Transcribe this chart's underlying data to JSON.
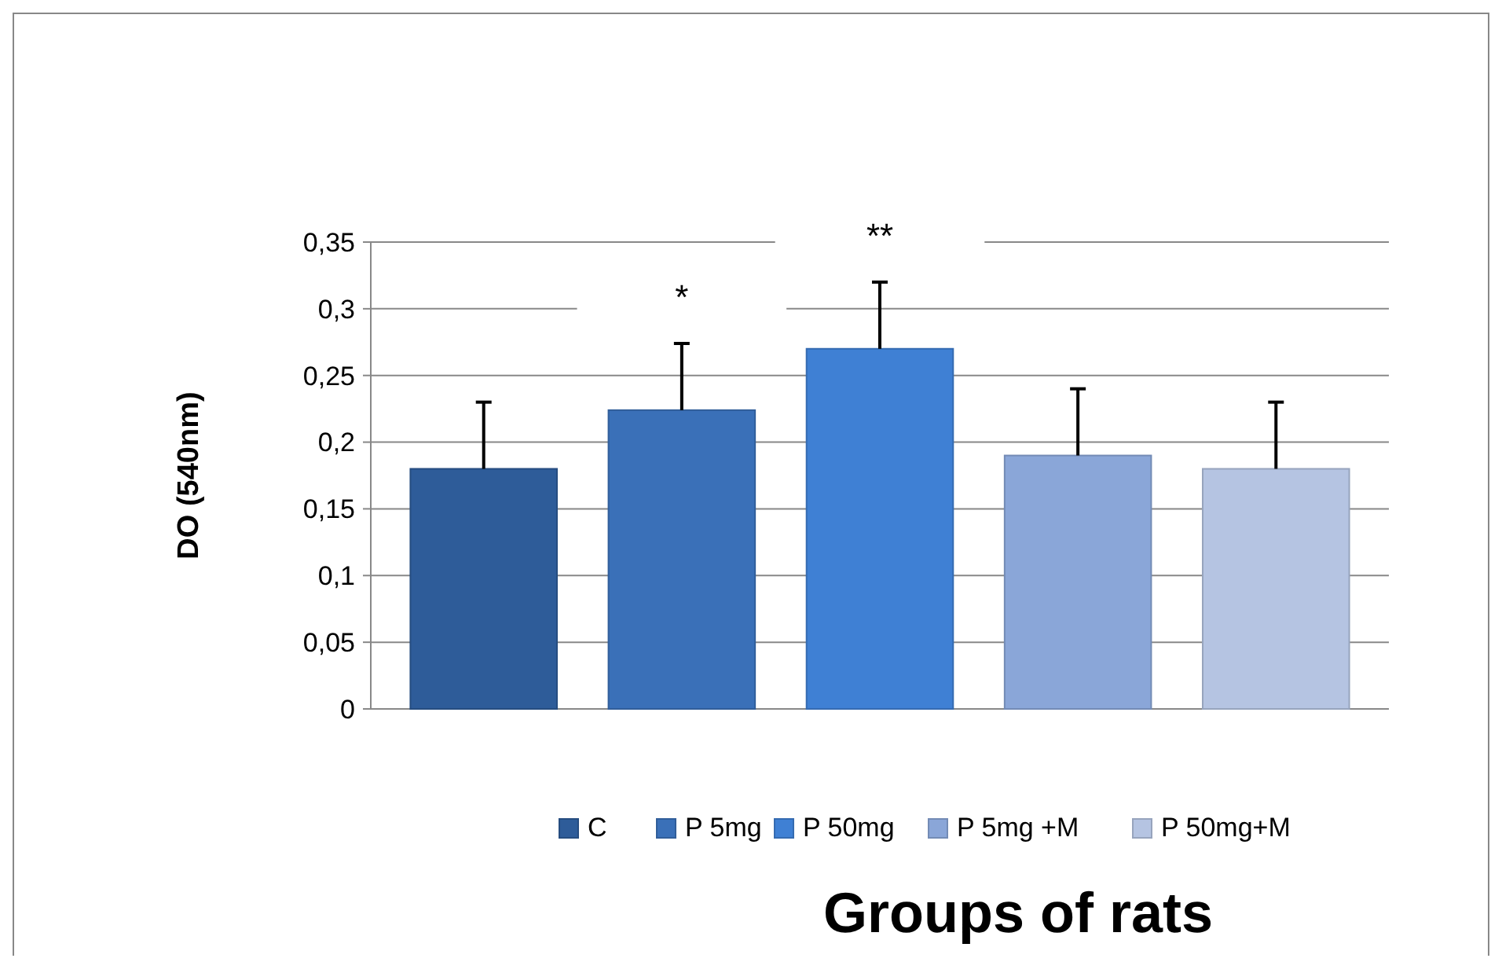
{
  "chart_data": {
    "type": "bar",
    "xlabel": "Groups of rats",
    "ylabel": "DO  (540nm)",
    "categories": [
      null,
      null,
      null,
      null,
      null
    ],
    "series": [
      {
        "name": "C",
        "color": "#2e5c99",
        "values": [
          0.18,
          null,
          null,
          null,
          null
        ],
        "errors": [
          [
            0.18,
            0.23
          ],
          null,
          null,
          null,
          null
        ]
      },
      {
        "name": "P 5mg",
        "color": "#3a70b8",
        "values": [
          null,
          0.224,
          null,
          null,
          null
        ],
        "errors": [
          null,
          [
            0.224,
            0.274
          ],
          null,
          null,
          null
        ],
        "value_labels": [
          null,
          "*",
          null,
          null,
          null
        ]
      },
      {
        "name": "P 50mg",
        "color": "#3f80d4",
        "values": [
          null,
          null,
          0.27,
          null,
          null
        ],
        "errors": [
          null,
          null,
          [
            0.27,
            0.32
          ],
          null,
          null
        ],
        "value_labels": [
          null,
          null,
          "**",
          null,
          null
        ]
      },
      {
        "name": "P 5mg +M",
        "color": "#8aa6d8",
        "values": [
          null,
          null,
          null,
          0.19,
          null
        ],
        "errors": [
          null,
          null,
          null,
          [
            0.19,
            0.24
          ],
          null
        ]
      },
      {
        "name": "P 50mg+M",
        "color": "#b5c4e2",
        "values": [
          null,
          null,
          null,
          null,
          0.18
        ],
        "errors": [
          null,
          null,
          null,
          null,
          [
            0.18,
            0.23
          ]
        ]
      }
    ],
    "ylim": [
      0,
      0.35
    ],
    "yticks": [
      0,
      {
        "value": 0.05,
        "label": "0,05"
      },
      {
        "value": 0.1,
        "label": "0,1"
      },
      {
        "value": 0.15,
        "label": "0,15"
      },
      {
        "value": 0.2,
        "label": "0,2"
      },
      {
        "value": 0.25,
        "label": "0,25"
      },
      {
        "value": 0.3,
        "label": "0,3"
      },
      {
        "value": 0.35,
        "label": "0,35"
      }
    ],
    "grid": "y",
    "legend": "bottom"
  }
}
